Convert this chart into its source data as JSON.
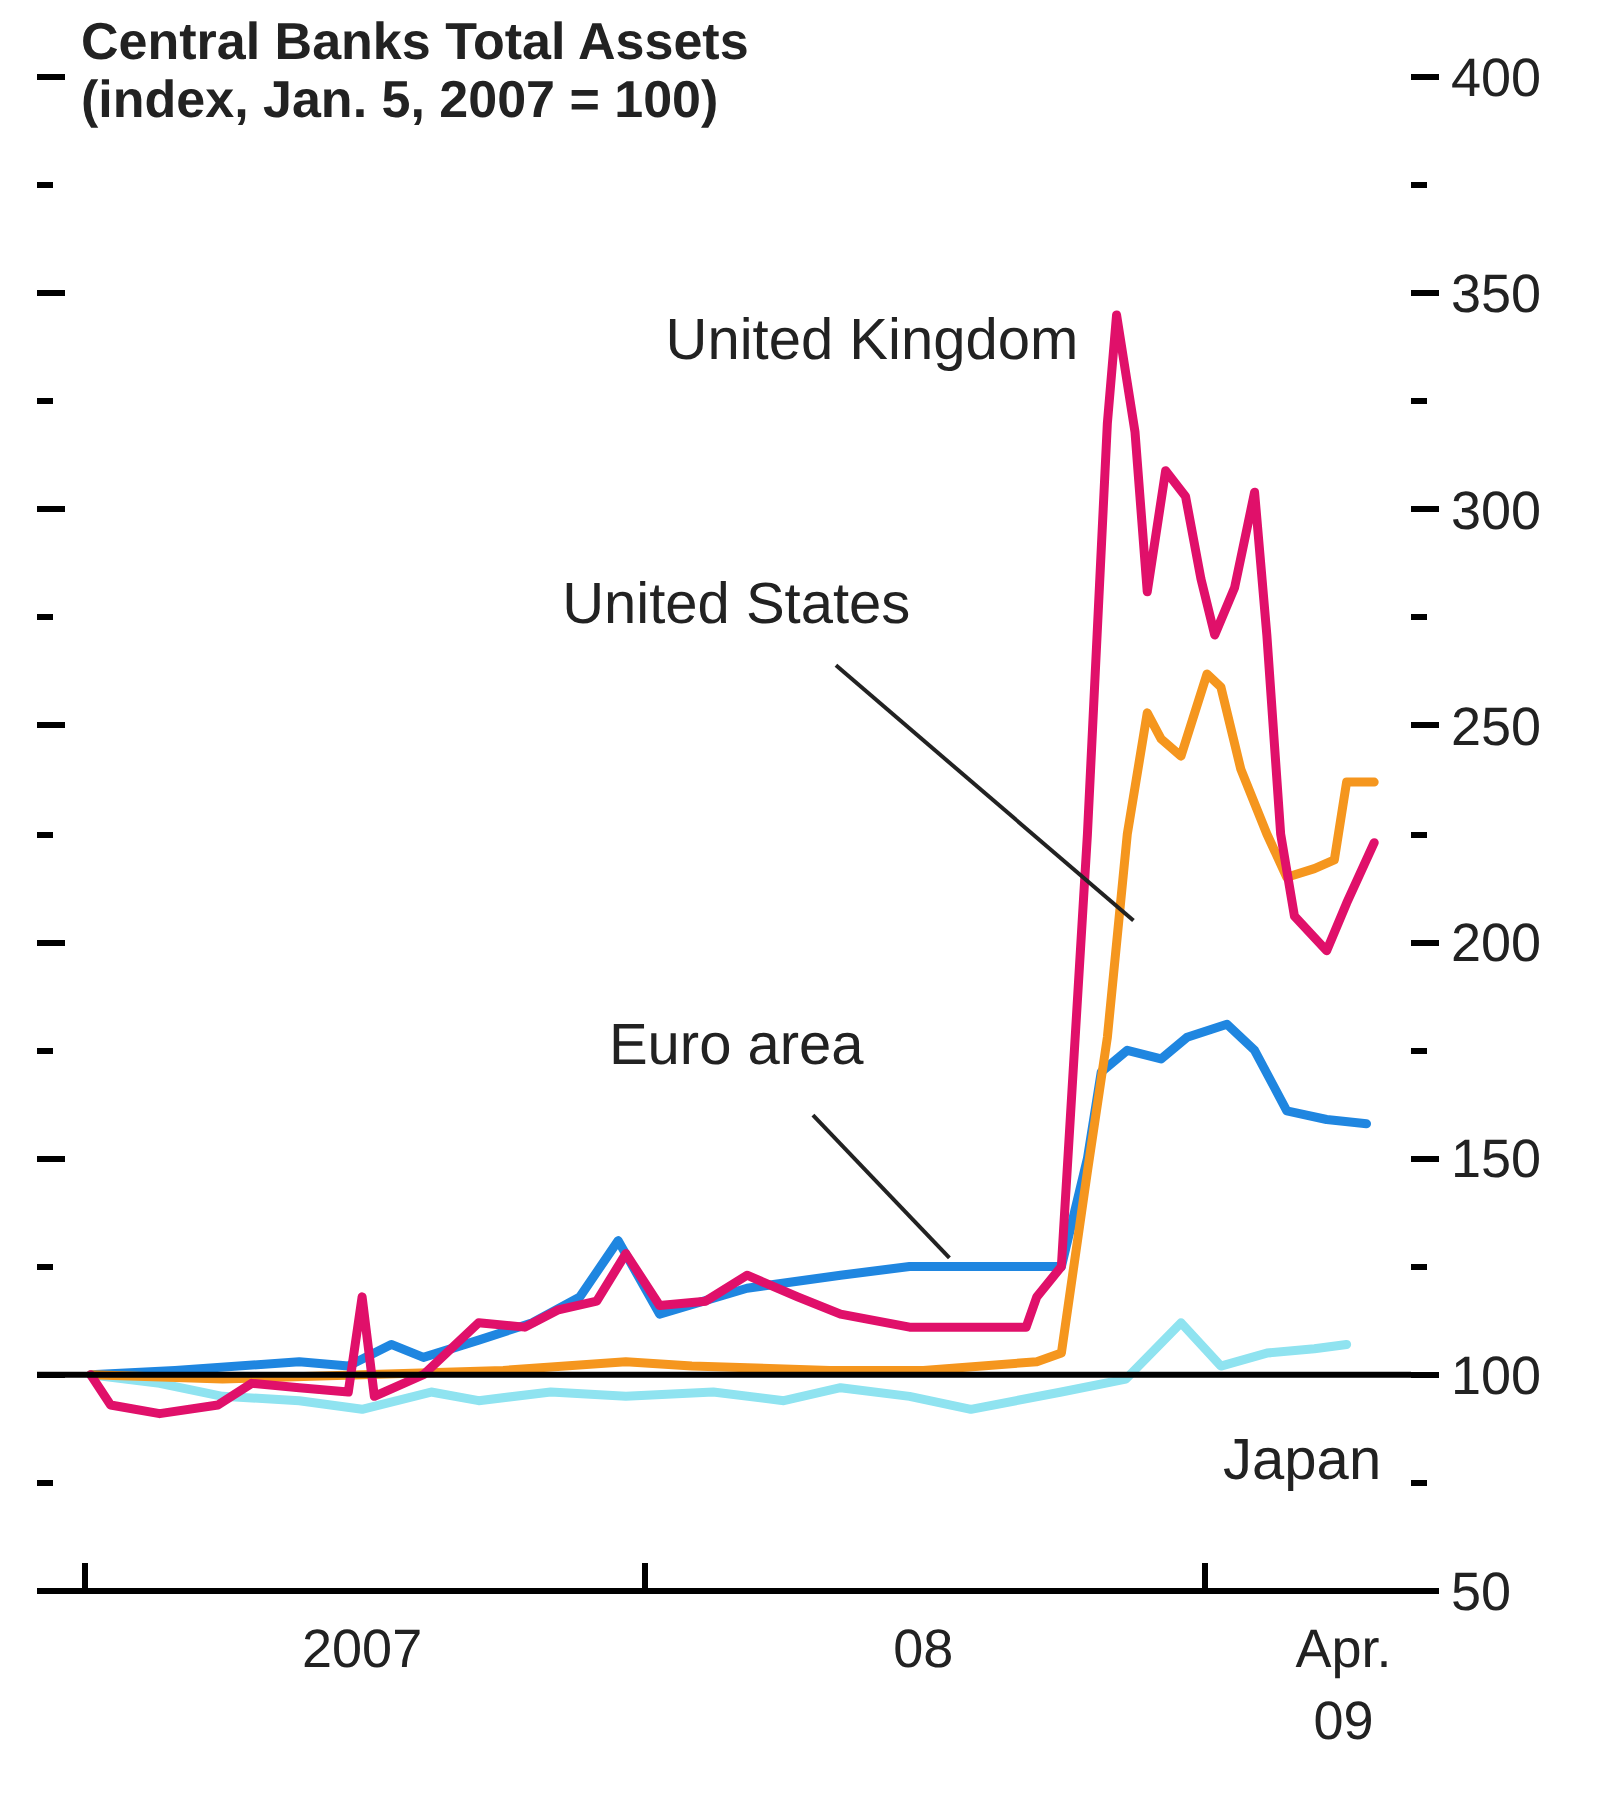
{
  "chart_data": {
    "type": "line",
    "title": "Central Banks Total Assets",
    "subtitle": "(index, Jan. 5, 2007 = 100)",
    "xlim": [
      "2006-12-01",
      "2009-05-15"
    ],
    "xticks": [
      {
        "value": "2007-01-01",
        "label": null
      },
      {
        "value": "2007-07-01",
        "label": "2007"
      },
      {
        "value": "2008-01-01",
        "label": null
      },
      {
        "value": "2008-07-01",
        "label": "08"
      },
      {
        "value": "2009-01-01",
        "label": null
      },
      {
        "value": "2009-04-01",
        "label": "Apr.\n09"
      }
    ],
    "ylim": [
      50,
      400
    ],
    "yticks": [
      50,
      {
        "value": 75,
        "label": null
      },
      100,
      {
        "value": 125,
        "label": null
      },
      150,
      {
        "value": 175,
        "label": null
      },
      200,
      {
        "value": 225,
        "label": null
      },
      250,
      {
        "value": 275,
        "label": null
      },
      300,
      {
        "value": 325,
        "label": null
      },
      350,
      {
        "value": 375,
        "label": null
      },
      400
    ],
    "grid": false,
    "legend": false,
    "ref_lines": [
      {
        "axis": "y",
        "value": 100,
        "color": "#000000"
      }
    ],
    "series": [
      {
        "name": "Japan",
        "color": "#8fe3f0",
        "x": [
          "2007-01-05",
          "2007-02-19",
          "2007-04-01",
          "2007-05-21",
          "2007-07-01",
          "2007-08-15",
          "2007-09-15",
          "2007-11-01",
          "2007-12-20",
          "2008-02-15",
          "2008-04-01",
          "2008-05-08",
          "2008-06-22",
          "2008-08-01",
          "2008-09-29",
          "2008-11-10",
          "2008-12-16",
          "2009-01-11",
          "2009-02-10",
          "2009-03-13",
          "2009-04-03"
        ],
        "values": [
          100,
          98,
          95,
          94,
          92,
          96,
          94,
          96,
          95,
          96,
          94,
          97,
          95,
          92,
          96,
          99,
          112,
          102,
          105,
          106,
          107
        ]
      },
      {
        "name": "Euro area",
        "color": "#1f86e0",
        "x": [
          "2007-01-05",
          "2007-03-01",
          "2007-05-21",
          "2007-06-22",
          "2007-07-20",
          "2007-08-10",
          "2007-09-15",
          "2007-10-20",
          "2007-11-20",
          "2007-12-15",
          "2008-01-11",
          "2008-03-08",
          "2008-05-08",
          "2008-06-22",
          "2008-08-15",
          "2008-09-29",
          "2008-10-16",
          "2008-10-25",
          "2008-11-11",
          "2008-12-03",
          "2008-12-20",
          "2009-01-15",
          "2009-02-02",
          "2009-02-23",
          "2009-03-21",
          "2009-04-16"
        ],
        "values": [
          100,
          101,
          103,
          102,
          107,
          104,
          108,
          112,
          118,
          131,
          114,
          120,
          123,
          125,
          125,
          125,
          150,
          170,
          175,
          173,
          178,
          181,
          175,
          161,
          159,
          158
        ]
      },
      {
        "name": "United States",
        "color": "#f5961e",
        "x": [
          "2007-01-05",
          "2007-04-01",
          "2007-07-01",
          "2007-10-01",
          "2007-12-20",
          "2008-02-01",
          "2008-05-01",
          "2008-07-01",
          "2008-09-13",
          "2008-09-29",
          "2008-10-16",
          "2008-10-29",
          "2008-11-11",
          "2008-11-24",
          "2008-12-03",
          "2008-12-16",
          "2009-01-02",
          "2009-01-11",
          "2009-01-24",
          "2009-02-10",
          "2009-02-23",
          "2009-03-13",
          "2009-03-26",
          "2009-04-03",
          "2009-04-21"
        ],
        "values": [
          100,
          99,
          100,
          101,
          103,
          102,
          101,
          101,
          103,
          105,
          147,
          178,
          225,
          253,
          247,
          243,
          262,
          259,
          240,
          225,
          215,
          217,
          219,
          237,
          237
        ]
      },
      {
        "name": "United Kingdom",
        "color": "#e0106a",
        "x": [
          "2007-01-05",
          "2007-01-18",
          "2007-02-19",
          "2007-03-29",
          "2007-04-20",
          "2007-05-21",
          "2007-06-22",
          "2007-07-01",
          "2007-07-09",
          "2007-08-10",
          "2007-09-15",
          "2007-10-15",
          "2007-11-06",
          "2007-12-01",
          "2007-12-20",
          "2008-01-11",
          "2008-02-10",
          "2008-03-08",
          "2008-04-10",
          "2008-05-08",
          "2008-06-22",
          "2008-09-06",
          "2008-09-13",
          "2008-09-29",
          "2008-10-16",
          "2008-10-29",
          "2008-11-04",
          "2008-11-16",
          "2008-11-24",
          "2008-12-06",
          "2008-12-19",
          "2008-12-29",
          "2009-01-07",
          "2009-01-20",
          "2009-02-02",
          "2009-02-10",
          "2009-02-19",
          "2009-02-28",
          "2009-03-21",
          "2009-04-03",
          "2009-04-21"
        ],
        "values": [
          100,
          93,
          91,
          93,
          98,
          97,
          96,
          118,
          95,
          100,
          112,
          111,
          115,
          117,
          128,
          116,
          117,
          123,
          118,
          114,
          111,
          111,
          118,
          125,
          225,
          320,
          345,
          318,
          281,
          309,
          303,
          284,
          271,
          282,
          304,
          271,
          225,
          206,
          198,
          209,
          223
        ]
      }
    ]
  }
}
